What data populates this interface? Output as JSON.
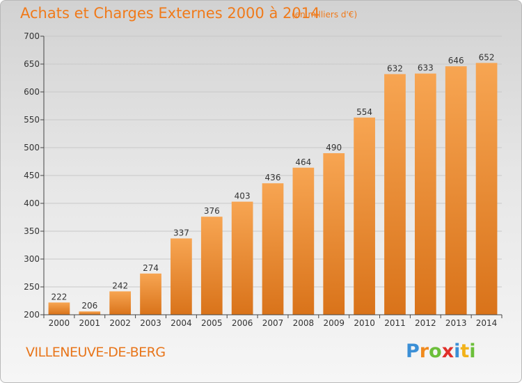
{
  "title": "Achats et Charges Externes 2000 à 2014",
  "unit": "(en milliers d'€)",
  "commune": "VILLENEUVE-DE-BERG",
  "logo": {
    "text": "Proxiti",
    "letters": [
      {
        "ch": "P",
        "color": "#3b8fd6"
      },
      {
        "ch": "r",
        "color": "#f08a1e"
      },
      {
        "ch": "o",
        "color": "#6cbf3a"
      },
      {
        "ch": "x",
        "color": "#e0302a"
      },
      {
        "ch": "i",
        "color": "#3b8fd6"
      },
      {
        "ch": "t",
        "color": "#f2b21a"
      },
      {
        "ch": "i",
        "color": "#6cbf3a"
      }
    ]
  },
  "colors": {
    "bar_light": "#f7a552",
    "bar_dark": "#d9731a",
    "axis": "#444444",
    "grid": "#c8c8c8",
    "title": "#f07a1a"
  },
  "chart_data": {
    "type": "bar",
    "categories": [
      "2000",
      "2001",
      "2002",
      "2003",
      "2004",
      "2005",
      "2006",
      "2007",
      "2008",
      "2009",
      "2010",
      "2011",
      "2012",
      "2013",
      "2014"
    ],
    "values": [
      222,
      206,
      242,
      274,
      337,
      376,
      403,
      436,
      464,
      490,
      554,
      632,
      633,
      646,
      652
    ],
    "ylim": [
      200,
      700
    ],
    "yticks": [
      200,
      250,
      300,
      350,
      400,
      450,
      500,
      550,
      600,
      650,
      700
    ],
    "grid": true,
    "title": "Achats et Charges Externes 2000 à 2014",
    "xlabel": "",
    "ylabel": ""
  }
}
